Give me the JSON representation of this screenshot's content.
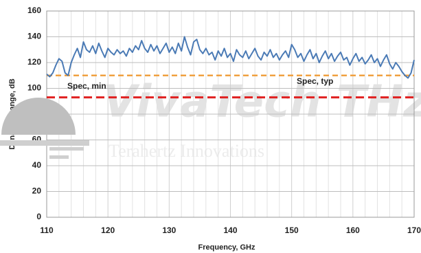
{
  "chart_data": {
    "type": "line",
    "xlabel": "Frequency, GHz",
    "ylabel": "Dynamic Range, dB",
    "watermark": "VivaTech THz",
    "watermark_subtitle": "Terahertz Innovations",
    "xlim": [
      110,
      170
    ],
    "xticks": [
      110,
      120,
      130,
      140,
      150,
      160,
      170
    ],
    "x_minor_grid": [
      112,
      114,
      116,
      118,
      122,
      124,
      126,
      128,
      132,
      134,
      136,
      138,
      142,
      144,
      146,
      148,
      152,
      154,
      156,
      158,
      162,
      164,
      166,
      168
    ],
    "ylim": [
      0,
      160
    ],
    "yticks": [
      0,
      20,
      40,
      60,
      80,
      100,
      120,
      140,
      160
    ],
    "grid": true,
    "reference_lines": [
      {
        "name": "Spec, typ",
        "value": 110,
        "color": "#f0a040"
      },
      {
        "name": "Spec, min",
        "value": 93,
        "color": "#e02020"
      }
    ],
    "x": [
      110,
      110.5,
      111,
      111.5,
      112,
      112.5,
      113,
      113.5,
      114,
      114.5,
      115,
      115.5,
      116,
      116.5,
      117,
      117.5,
      118,
      118.5,
      119,
      119.5,
      120,
      120.5,
      121,
      121.5,
      122,
      122.5,
      123,
      123.5,
      124,
      124.5,
      125,
      125.5,
      126,
      126.5,
      127,
      127.5,
      128,
      128.5,
      129,
      129.5,
      130,
      130.5,
      131,
      131.5,
      132,
      132.5,
      133,
      133.5,
      134,
      134.5,
      135,
      135.5,
      136,
      136.5,
      137,
      137.5,
      138,
      138.5,
      139,
      139.5,
      140,
      140.5,
      141,
      141.5,
      142,
      142.5,
      143,
      143.5,
      144,
      144.5,
      145,
      145.5,
      146,
      146.5,
      147,
      147.5,
      148,
      148.5,
      149,
      149.5,
      150,
      150.5,
      151,
      151.5,
      152,
      152.5,
      153,
      153.5,
      154,
      154.5,
      155,
      155.5,
      156,
      156.5,
      157,
      157.5,
      158,
      158.5,
      159,
      159.5,
      160,
      160.5,
      161,
      161.5,
      162,
      162.5,
      163,
      163.5,
      164,
      164.5,
      165,
      165.5,
      166,
      166.5,
      167,
      167.5,
      168,
      168.5,
      169,
      169.5,
      170
    ],
    "series": [
      {
        "name": "Dynamic Range",
        "color": "#4a7ab5",
        "values": [
          111,
          109,
          112,
          118,
          123,
          121,
          112,
          110,
          120,
          126,
          131,
          124,
          136,
          130,
          128,
          133,
          127,
          135,
          129,
          124,
          131,
          128,
          126,
          130,
          127,
          129,
          125,
          131,
          128,
          133,
          130,
          137,
          131,
          128,
          134,
          129,
          133,
          127,
          131,
          135,
          128,
          132,
          127,
          135,
          129,
          140,
          132,
          126,
          136,
          138,
          130,
          127,
          131,
          126,
          128,
          122,
          129,
          125,
          131,
          124,
          127,
          121,
          130,
          126,
          124,
          129,
          123,
          127,
          131,
          125,
          122,
          128,
          125,
          130,
          124,
          127,
          122,
          126,
          129,
          124,
          134,
          130,
          124,
          127,
          121,
          126,
          130,
          123,
          127,
          120,
          125,
          129,
          123,
          127,
          121,
          125,
          128,
          122,
          124,
          118,
          123,
          127,
          121,
          124,
          119,
          122,
          126,
          120,
          123,
          117,
          122,
          126,
          119,
          115,
          120,
          117,
          113,
          110,
          108,
          112,
          122
        ]
      }
    ]
  }
}
